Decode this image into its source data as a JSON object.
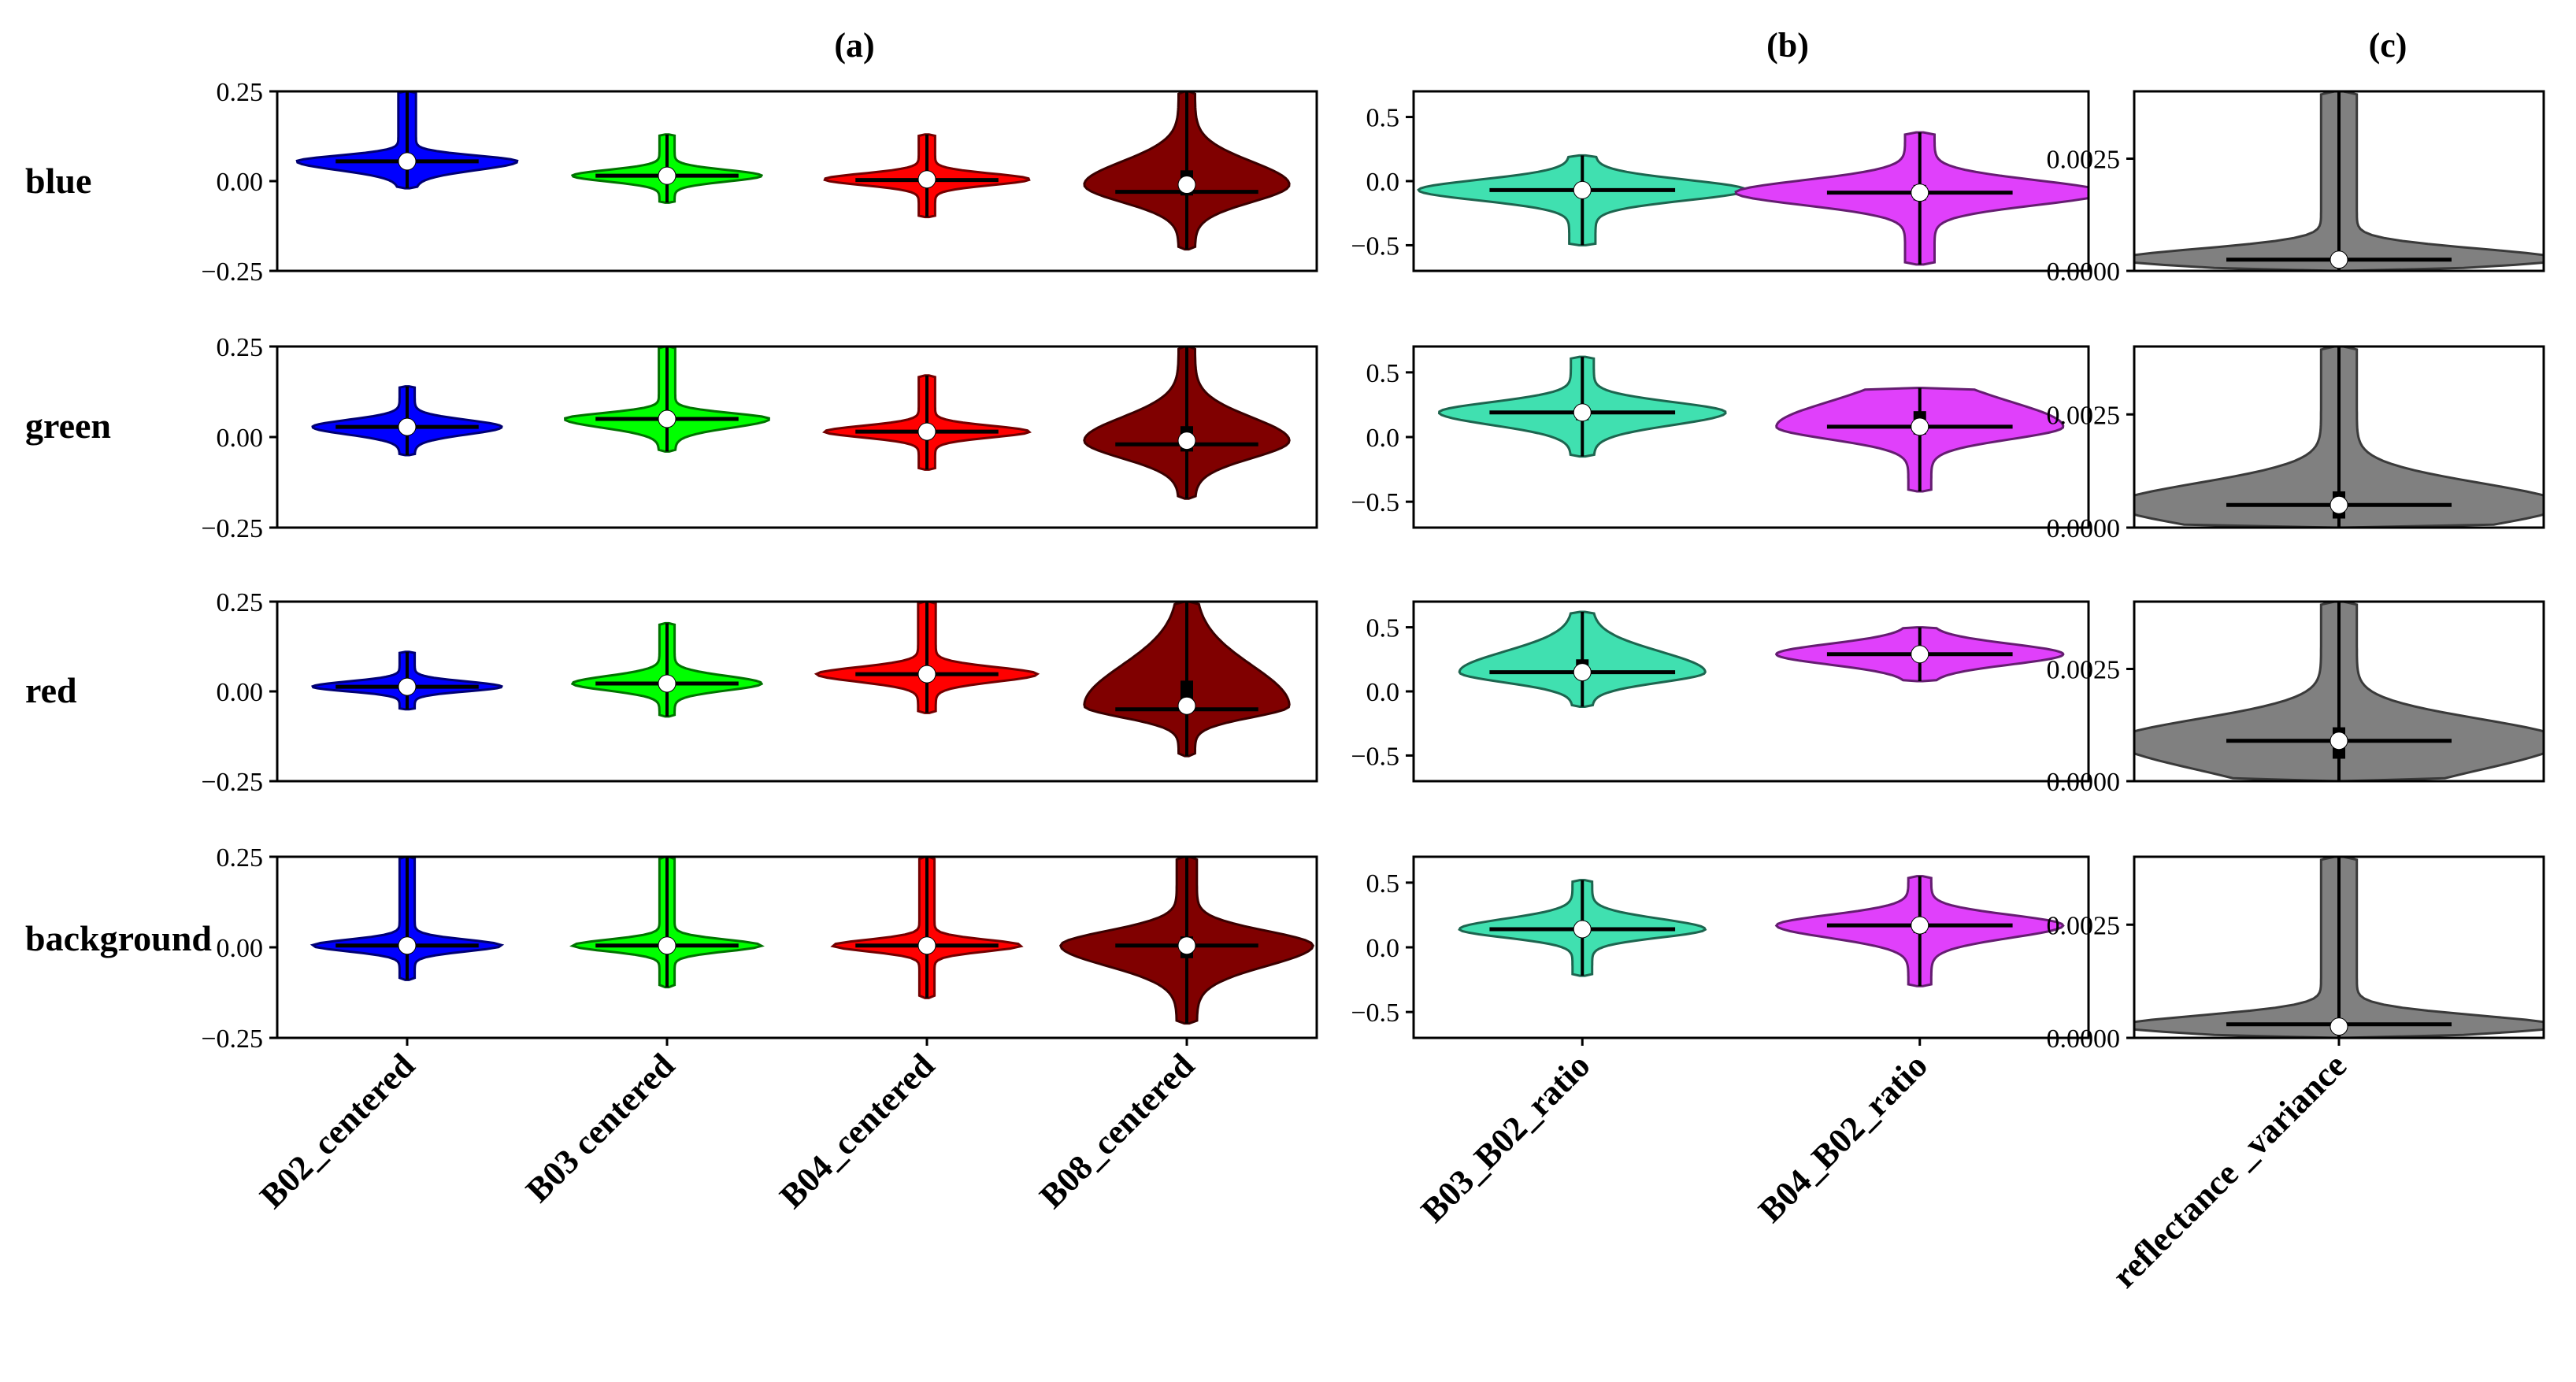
{
  "chart_data": {
    "type": "violin",
    "panel_titles": [
      "(a)",
      "(b)",
      "(c)"
    ],
    "row_labels": [
      "blue",
      "green",
      "red",
      "background"
    ],
    "columns": [
      {
        "title": "(a)",
        "categories": [
          "B02_centered",
          "B03 centered",
          "B04_centered",
          "B08_centered"
        ],
        "colors": [
          "#0000ff",
          "#00ff00",
          "#ff0000",
          "#800000"
        ],
        "ylim": [
          -0.25,
          0.25
        ],
        "yticks": [
          -0.25,
          0.0,
          0.25
        ],
        "ytick_labels": [
          "−0.25",
          "0.00",
          "0.25"
        ]
      },
      {
        "title": "(b)",
        "categories": [
          "B03_B02_ratio",
          "B04_B02_ratio"
        ],
        "colors": [
          "#40e0b0",
          "#e040fb"
        ],
        "ylim": [
          -0.7,
          0.7
        ],
        "yticks": [
          -0.5,
          0.0,
          0.5
        ],
        "ytick_labels": [
          "−0.5",
          "0.0",
          "0.5"
        ]
      },
      {
        "title": "(c)",
        "categories": [
          "reflectance _variance"
        ],
        "colors": [
          "#808080"
        ],
        "ylim": [
          0,
          0.004
        ],
        "yticks": [
          0.0,
          0.0025
        ],
        "ytick_labels": [
          "0.0000",
          "0.0025"
        ]
      }
    ],
    "panels": [
      [
        [
          {
            "min": -0.02,
            "q1": 0.04,
            "median": 0.055,
            "q3": 0.065,
            "max": 0.25,
            "mean": 0.055,
            "width": 0.14
          },
          {
            "min": -0.06,
            "q1": 0.005,
            "median": 0.015,
            "q3": 0.025,
            "max": 0.13,
            "mean": 0.015,
            "width": 0.12
          },
          {
            "min": -0.1,
            "q1": -0.005,
            "median": 0.005,
            "q3": 0.015,
            "max": 0.13,
            "mean": 0.003,
            "width": 0.13
          },
          {
            "min": -0.19,
            "q1": -0.04,
            "median": -0.01,
            "q3": 0.03,
            "max": 0.25,
            "mean": -0.03,
            "width": 0.13
          }
        ],
        [
          {
            "min": -0.05,
            "q1": 0.015,
            "median": 0.028,
            "q3": 0.04,
            "max": 0.14,
            "mean": 0.028,
            "width": 0.12
          },
          {
            "min": -0.04,
            "q1": 0.035,
            "median": 0.05,
            "q3": 0.06,
            "max": 0.25,
            "mean": 0.05,
            "width": 0.13
          },
          {
            "min": -0.09,
            "q1": 0.005,
            "median": 0.015,
            "q3": 0.025,
            "max": 0.17,
            "mean": 0.015,
            "width": 0.13
          },
          {
            "min": -0.17,
            "q1": -0.04,
            "median": -0.01,
            "q3": 0.03,
            "max": 0.25,
            "mean": -0.02,
            "width": 0.13
          }
        ],
        [
          {
            "min": -0.05,
            "q1": 0.005,
            "median": 0.013,
            "q3": 0.022,
            "max": 0.11,
            "mean": 0.013,
            "width": 0.12
          },
          {
            "min": -0.07,
            "q1": 0.01,
            "median": 0.022,
            "q3": 0.035,
            "max": 0.19,
            "mean": 0.022,
            "width": 0.12
          },
          {
            "min": -0.06,
            "q1": 0.035,
            "median": 0.048,
            "q3": 0.06,
            "max": 0.25,
            "mean": 0.048,
            "width": 0.14
          },
          {
            "min": -0.18,
            "q1": -0.06,
            "median": -0.04,
            "q3": 0.03,
            "max": 0.25,
            "mean": -0.05,
            "width": 0.13
          }
        ],
        [
          {
            "min": -0.09,
            "q1": -0.005,
            "median": 0.005,
            "q3": 0.015,
            "max": 0.25,
            "mean": 0.005,
            "width": 0.12
          },
          {
            "min": -0.11,
            "q1": -0.005,
            "median": 0.005,
            "q3": 0.015,
            "max": 0.25,
            "mean": 0.005,
            "width": 0.12
          },
          {
            "min": -0.14,
            "q1": -0.005,
            "median": 0.005,
            "q3": 0.015,
            "max": 0.25,
            "mean": 0.005,
            "width": 0.12
          },
          {
            "min": -0.21,
            "q1": -0.03,
            "median": 0.005,
            "q3": 0.03,
            "max": 0.25,
            "mean": 0.005,
            "width": 0.16
          }
        ]
      ],
      [
        [
          {
            "min": -0.5,
            "q1": -0.12,
            "median": -0.07,
            "q3": -0.02,
            "max": 0.2,
            "mean": -0.07,
            "width": 0.16
          },
          {
            "min": -0.65,
            "q1": -0.15,
            "median": -0.09,
            "q3": -0.03,
            "max": 0.38,
            "mean": -0.09,
            "width": 0.18
          }
        ],
        [
          {
            "min": -0.15,
            "q1": 0.13,
            "median": 0.19,
            "q3": 0.24,
            "max": 0.62,
            "mean": 0.19,
            "width": 0.14
          },
          {
            "min": -0.42,
            "q1": 0.02,
            "median": 0.08,
            "q3": 0.2,
            "max": 0.38,
            "mean": 0.08,
            "width": 0.14
          }
        ],
        [
          {
            "min": -0.12,
            "q1": 0.1,
            "median": 0.15,
            "q3": 0.25,
            "max": 0.62,
            "mean": 0.15,
            "width": 0.12
          },
          {
            "min": 0.08,
            "q1": 0.24,
            "median": 0.29,
            "q3": 0.34,
            "max": 0.5,
            "mean": 0.29,
            "width": 0.14
          }
        ],
        [
          {
            "min": -0.22,
            "q1": 0.1,
            "median": 0.14,
            "q3": 0.19,
            "max": 0.52,
            "mean": 0.14,
            "width": 0.12
          },
          {
            "min": -0.3,
            "q1": 0.11,
            "median": 0.17,
            "q3": 0.22,
            "max": 0.55,
            "mean": 0.17,
            "width": 0.14
          }
        ]
      ],
      [
        [
          {
            "min": 0,
            "q1": 0.00015,
            "median": 0.00025,
            "q3": 0.0004,
            "max": 0.004,
            "mean": 0.00025,
            "width": 0.18
          }
        ],
        [
          {
            "min": 0,
            "q1": 0.0002,
            "median": 0.0005,
            "q3": 0.0008,
            "max": 0.004,
            "mean": 0.0005,
            "width": 0.18
          }
        ],
        [
          {
            "min": 0,
            "q1": 0.0005,
            "median": 0.0009,
            "q3": 0.0012,
            "max": 0.004,
            "mean": 0.0009,
            "width": 0.18
          }
        ],
        [
          {
            "min": 0,
            "q1": 0.00015,
            "median": 0.00025,
            "q3": 0.0004,
            "max": 0.004,
            "mean": 0.0003,
            "width": 0.18
          }
        ]
      ]
    ]
  }
}
